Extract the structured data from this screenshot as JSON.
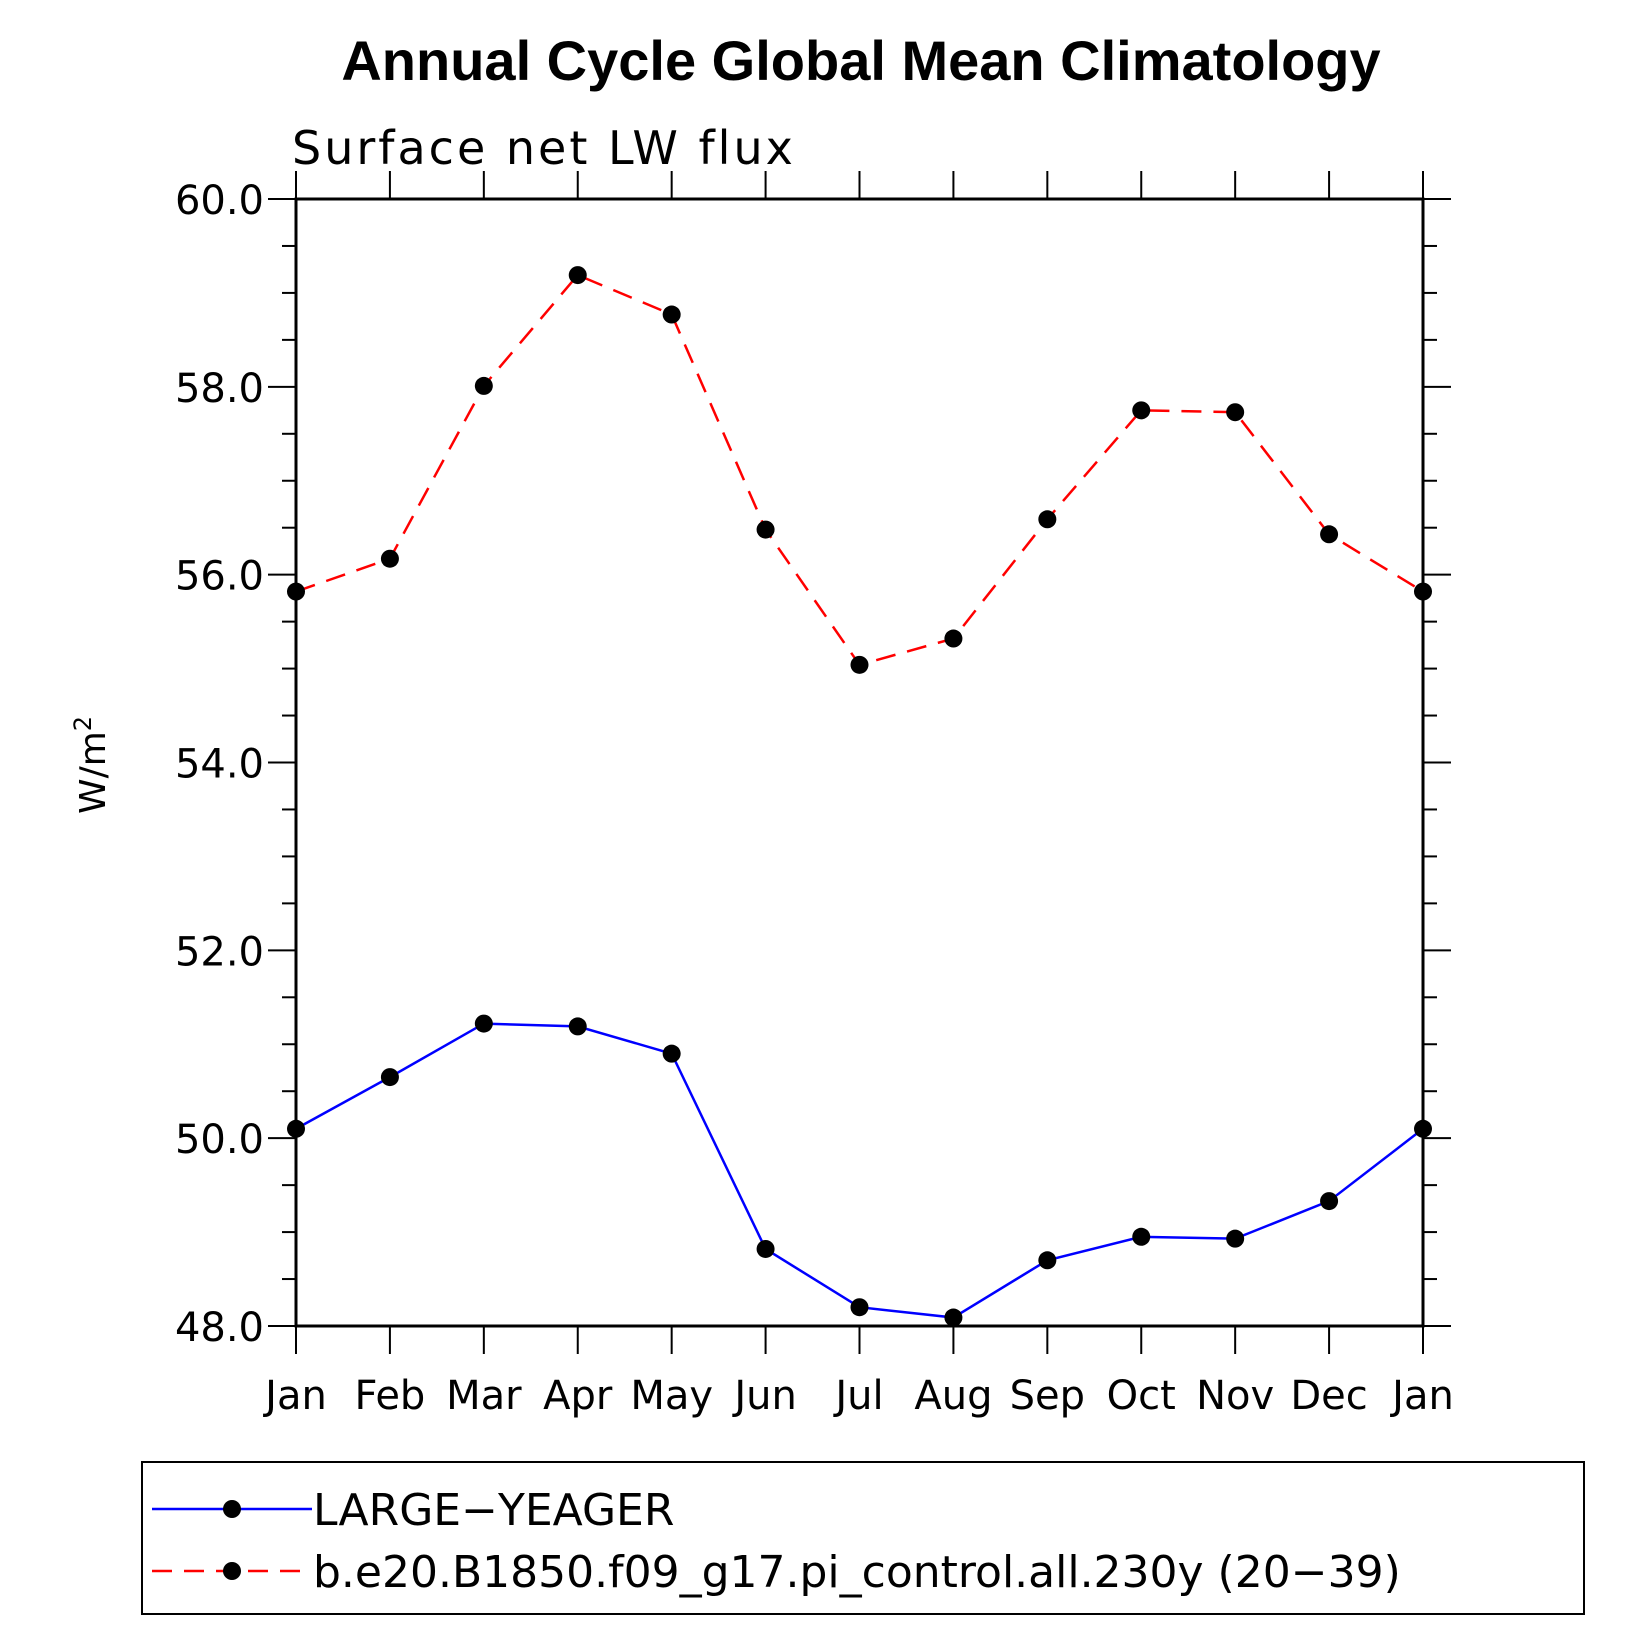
{
  "chart_data": {
    "type": "line",
    "title": "Annual Cycle Global Mean Climatology",
    "subtitle": "Surface net LW flux",
    "ylabel": "W/m",
    "ylabel_superscript": "2",
    "ylim": [
      48.0,
      60.0
    ],
    "yticks": [
      "48.0",
      "50.0",
      "52.0",
      "54.0",
      "56.0",
      "58.0",
      "60.0"
    ],
    "yticks_values": [
      48,
      50,
      52,
      54,
      56,
      58,
      60
    ],
    "categories": [
      "Jan",
      "Feb",
      "Mar",
      "Apr",
      "May",
      "Jun",
      "Jul",
      "Aug",
      "Sep",
      "Oct",
      "Nov",
      "Dec",
      "Jan"
    ],
    "grid": false,
    "legend_position": "bottom",
    "series": [
      {
        "name": "LARGE−YEAGER",
        "color": "#0000ff",
        "dash": "solid",
        "marker": "filled-circle",
        "values": [
          50.1,
          50.65,
          51.22,
          51.19,
          50.9,
          48.82,
          48.2,
          48.09,
          48.7,
          48.95,
          48.93,
          49.33,
          50.1
        ]
      },
      {
        "name": "b.e20.B1850.f09_g17.pi_control.all.230y (20−39)",
        "color": "#ff0000",
        "dash": "dashed",
        "marker": "filled-circle",
        "values": [
          55.82,
          56.17,
          58.01,
          59.19,
          58.77,
          56.48,
          55.04,
          55.32,
          56.59,
          57.75,
          57.73,
          56.43,
          55.82
        ]
      }
    ]
  }
}
